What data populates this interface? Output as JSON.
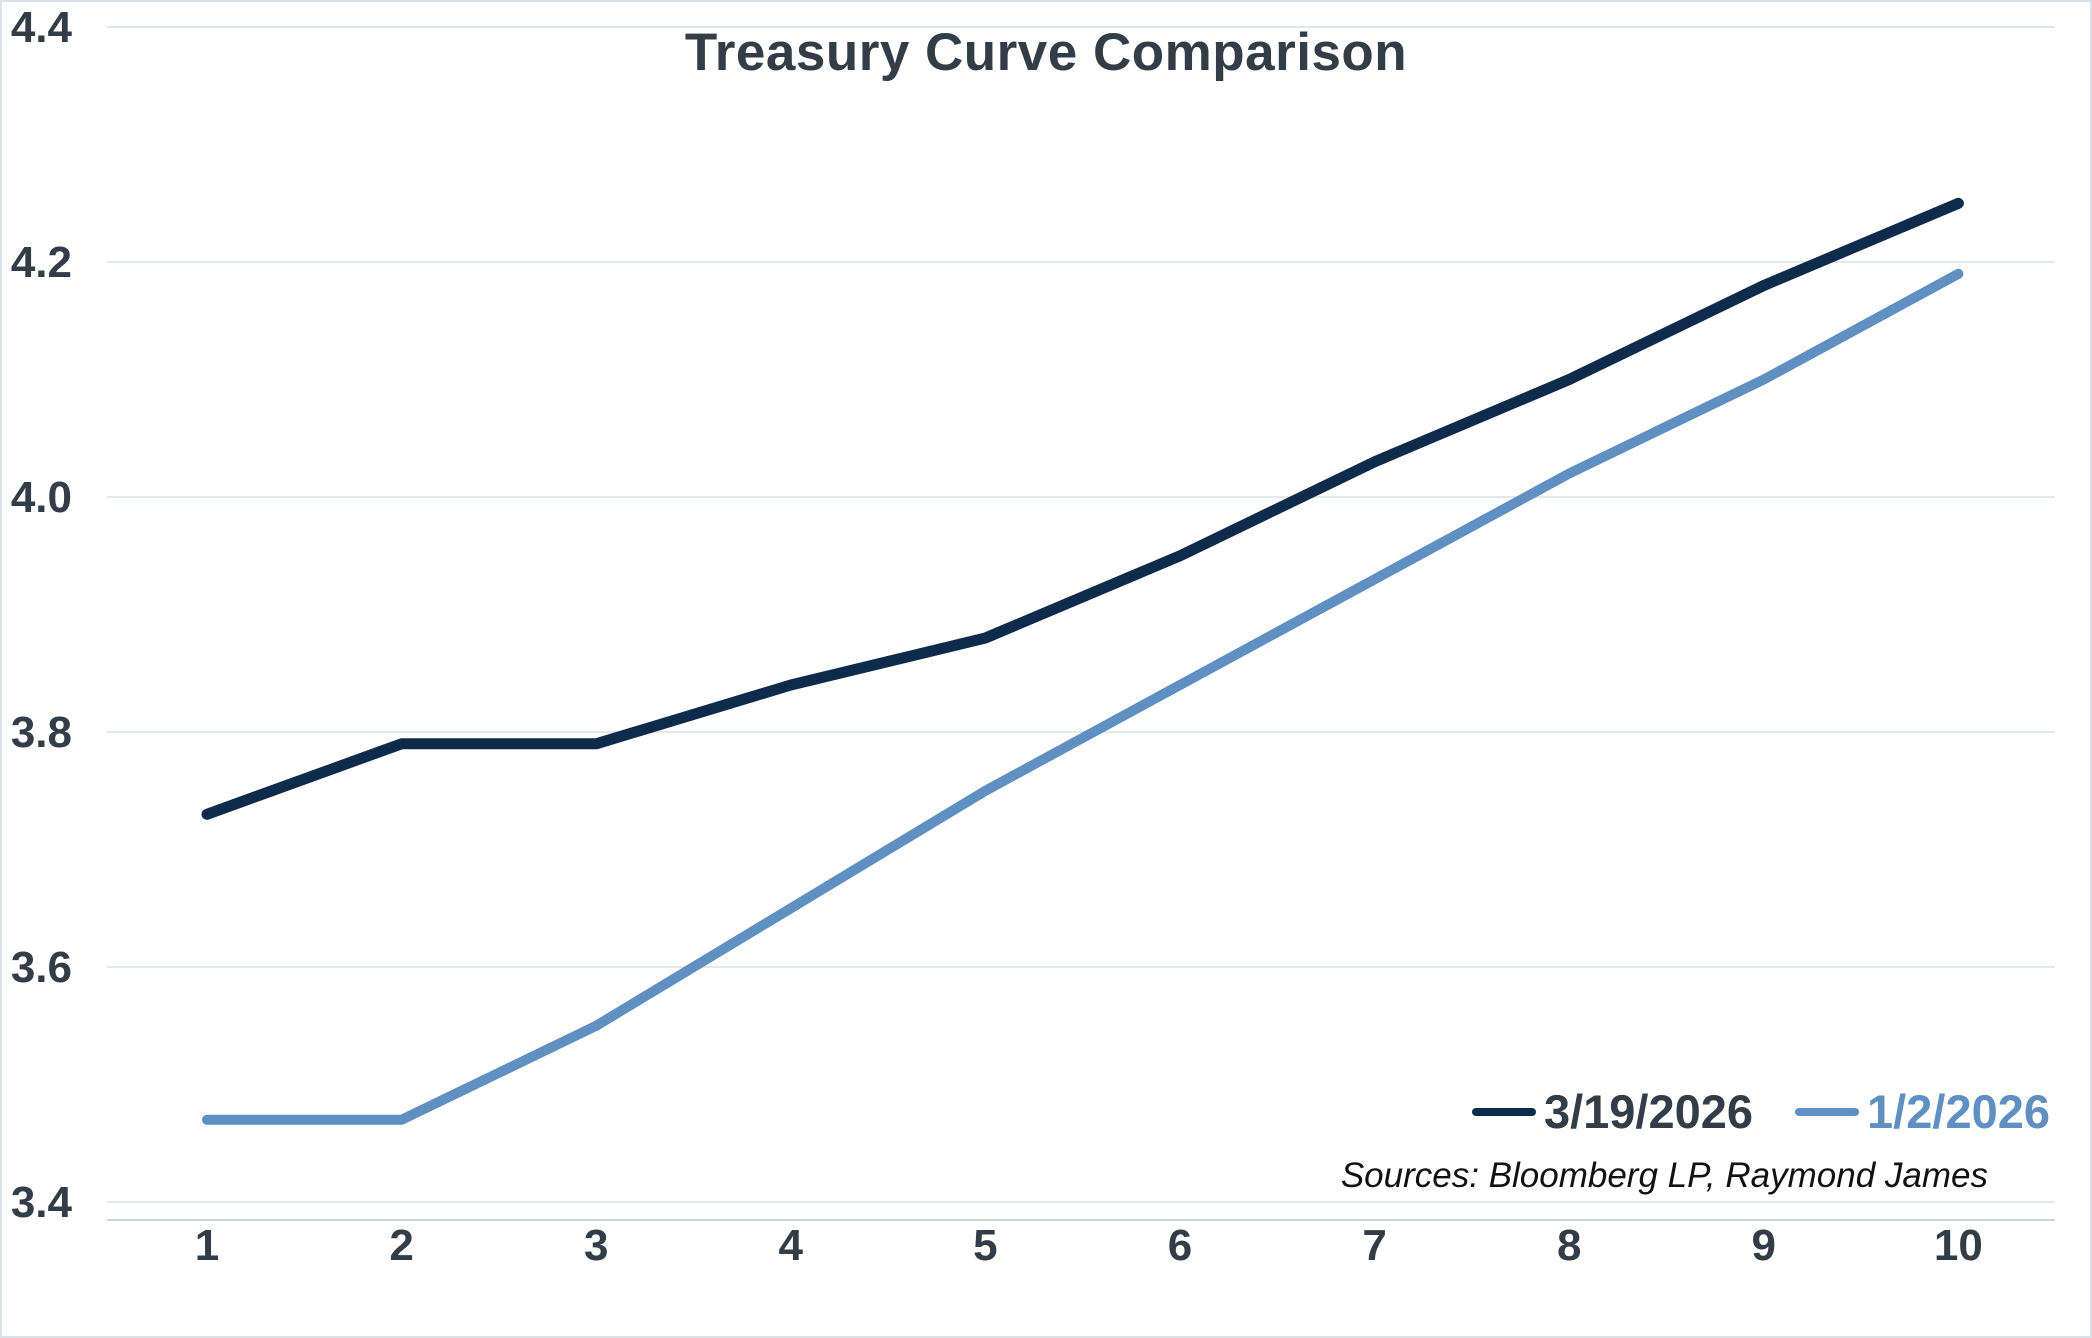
{
  "chart_data": {
    "type": "line",
    "title": "Treasury Curve Comparison",
    "categories": [
      "1",
      "2",
      "3",
      "4",
      "5",
      "6",
      "7",
      "8",
      "9",
      "10"
    ],
    "series": [
      {
        "name": "3/19/2026",
        "color": "#0f2b4c",
        "stroke_width": 11,
        "values": [
          3.73,
          3.79,
          3.79,
          3.84,
          3.88,
          3.95,
          4.03,
          4.1,
          4.18,
          4.25
        ]
      },
      {
        "name": "1/2/2026",
        "color": "#5f90c1",
        "stroke_width": 10,
        "values": [
          3.47,
          3.47,
          3.55,
          3.65,
          3.75,
          3.84,
          3.93,
          4.02,
          4.1,
          4.19
        ]
      }
    ],
    "ylim": [
      3.4,
      4.4
    ],
    "y_tick_step": 0.2,
    "y_tick_labels": [
      "3.4",
      "3.6",
      "3.8",
      "4.0",
      "4.2",
      "4.4"
    ],
    "xlabel": "",
    "ylabel": "",
    "grid": "horizontal",
    "legend_position": "inside-bottom-right",
    "source_note": "Sources: Bloomberg LP, Raymond James"
  },
  "colors": {
    "title_text": "#333d47",
    "tick_text": "#333d47",
    "gridline": "#e4e8eb",
    "axis_line": "#ccd4da",
    "frame_border": "#d9e2e8",
    "background": "#ffffff",
    "legend_label_dark": "#333d47",
    "legend_label_light": "#5f90c1",
    "source_text": "#111111"
  }
}
